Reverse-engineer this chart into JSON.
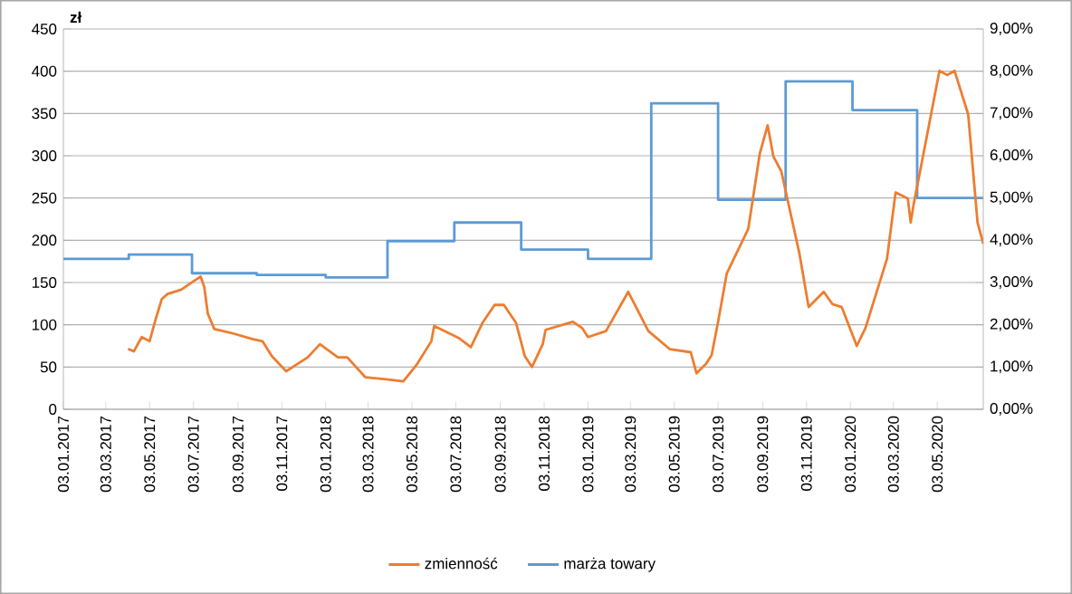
{
  "chart_data": {
    "type": "line",
    "ylabel": "zł",
    "xlim": [
      "2017-01-03",
      "2020-07-06"
    ],
    "xticks": [
      {
        "value": "2017-01-03",
        "label": "03.01.2017"
      },
      {
        "value": "2017-03-03",
        "label": "03.03.2017"
      },
      {
        "value": "2017-05-03",
        "label": "03.05.2017"
      },
      {
        "value": "2017-07-03",
        "label": "03.07.2017"
      },
      {
        "value": "2017-09-03",
        "label": "03.09.2017"
      },
      {
        "value": "2017-11-03",
        "label": "03.11.2017"
      },
      {
        "value": "2018-01-03",
        "label": "03.01.2018"
      },
      {
        "value": "2018-03-03",
        "label": "03.03.2018"
      },
      {
        "value": "2018-05-03",
        "label": "03.05.2018"
      },
      {
        "value": "2018-07-03",
        "label": "03.07.2018"
      },
      {
        "value": "2018-09-03",
        "label": "03.09.2018"
      },
      {
        "value": "2018-11-03",
        "label": "03.11.2018"
      },
      {
        "value": "2019-01-03",
        "label": "03.01.2019"
      },
      {
        "value": "2019-03-03",
        "label": "03.03.2019"
      },
      {
        "value": "2019-05-03",
        "label": "03.05.2019"
      },
      {
        "value": "2019-07-03",
        "label": "03.07.2019"
      },
      {
        "value": "2019-09-03",
        "label": "03.09.2019"
      },
      {
        "value": "2019-11-03",
        "label": "03.11.2019"
      },
      {
        "value": "2020-01-03",
        "label": "03.01.2020"
      },
      {
        "value": "2020-03-03",
        "label": "03.03.2020"
      },
      {
        "value": "2020-05-03",
        "label": "03.05.2020"
      }
    ],
    "ylim": [
      0,
      450
    ],
    "yticks": [
      0,
      50,
      100,
      150,
      200,
      250,
      300,
      350,
      400,
      450
    ],
    "y2lim": [
      0,
      9
    ],
    "y2ticks": [
      {
        "value": 0,
        "label": "0,00%"
      },
      {
        "value": 1,
        "label": "1,00%"
      },
      {
        "value": 2,
        "label": "2,00%"
      },
      {
        "value": 3,
        "label": "3,00%"
      },
      {
        "value": 4,
        "label": "4,00%"
      },
      {
        "value": 5,
        "label": "5,00%"
      },
      {
        "value": 6,
        "label": "6,00%"
      },
      {
        "value": 7,
        "label": "7,00%"
      },
      {
        "value": 8,
        "label": "8,00%"
      },
      {
        "value": 9,
        "label": "9,00%"
      }
    ],
    "grid": "y",
    "legend": "bottom",
    "series": [
      {
        "name": "zmienność",
        "axis": "y2",
        "color": "#ed7d31",
        "x": [
          "2017-04-03",
          "2017-04-11",
          "2017-04-22",
          "2017-05-03",
          "2017-05-11",
          "2017-05-20",
          "2017-05-28",
          "2017-06-16",
          "2017-07-04",
          "2017-07-13",
          "2017-07-18",
          "2017-07-23",
          "2017-08-01",
          "2017-08-26",
          "2017-09-24",
          "2017-10-07",
          "2017-10-20",
          "2017-11-09",
          "2017-12-09",
          "2017-12-26",
          "2018-01-20",
          "2018-02-02",
          "2018-02-27",
          "2018-03-28",
          "2018-04-21",
          "2018-05-09",
          "2018-05-30",
          "2018-06-03",
          "2018-07-07",
          "2018-07-24",
          "2018-08-09",
          "2018-08-26",
          "2018-09-08",
          "2018-09-25",
          "2018-10-07",
          "2018-10-17",
          "2018-11-01",
          "2018-11-05",
          "2018-12-13",
          "2018-12-26",
          "2019-01-03",
          "2019-01-28",
          "2019-02-28",
          "2019-03-28",
          "2019-04-27",
          "2019-05-26",
          "2019-06-03",
          "2019-06-16",
          "2019-06-24",
          "2019-07-03",
          "2019-07-15",
          "2019-08-14",
          "2019-08-30",
          "2019-09-10",
          "2019-09-18",
          "2019-09-29",
          "2019-10-24",
          "2019-11-06",
          "2019-11-27",
          "2019-12-09",
          "2019-12-22",
          "2020-01-12",
          "2020-01-24",
          "2020-02-23",
          "2020-03-06",
          "2020-03-23",
          "2020-03-27",
          "2020-03-31",
          "2020-04-13",
          "2020-05-06",
          "2020-05-17",
          "2020-05-27",
          "2020-06-15",
          "2020-06-28",
          "2020-07-06"
        ],
        "values": [
          1.43,
          1.37,
          1.71,
          1.61,
          2.11,
          2.61,
          2.73,
          2.83,
          3.04,
          3.14,
          2.9,
          2.26,
          1.9,
          1.8,
          1.66,
          1.61,
          1.26,
          0.9,
          1.23,
          1.54,
          1.23,
          1.23,
          0.76,
          0.71,
          0.66,
          1.04,
          1.61,
          1.97,
          1.69,
          1.47,
          2.04,
          2.47,
          2.47,
          2.04,
          1.26,
          1.0,
          1.54,
          1.88,
          2.07,
          1.92,
          1.71,
          1.85,
          2.78,
          1.85,
          1.42,
          1.35,
          0.85,
          1.07,
          1.28,
          2.07,
          3.21,
          4.27,
          6.05,
          6.72,
          5.98,
          5.63,
          3.7,
          2.42,
          2.78,
          2.49,
          2.42,
          1.5,
          1.92,
          3.56,
          5.13,
          4.99,
          4.42,
          4.84,
          5.98,
          8.01,
          7.91,
          8.01,
          6.98,
          4.42,
          3.92
        ]
      },
      {
        "name": "marża towary",
        "type": "step",
        "axis": "y",
        "color": "#5b9bd5",
        "x": [
          "2017-01-03",
          "2017-04-04",
          "2017-07-01",
          "2017-09-29",
          "2018-01-03",
          "2018-03-30",
          "2018-07-01",
          "2018-10-02",
          "2019-01-03",
          "2019-04-01",
          "2019-07-03",
          "2019-10-05",
          "2020-01-06",
          "2020-04-05",
          "2020-07-06"
        ],
        "values": [
          178,
          183,
          161,
          159,
          156,
          199,
          221,
          189,
          178,
          362,
          248,
          388,
          354,
          250,
          250
        ]
      }
    ]
  }
}
